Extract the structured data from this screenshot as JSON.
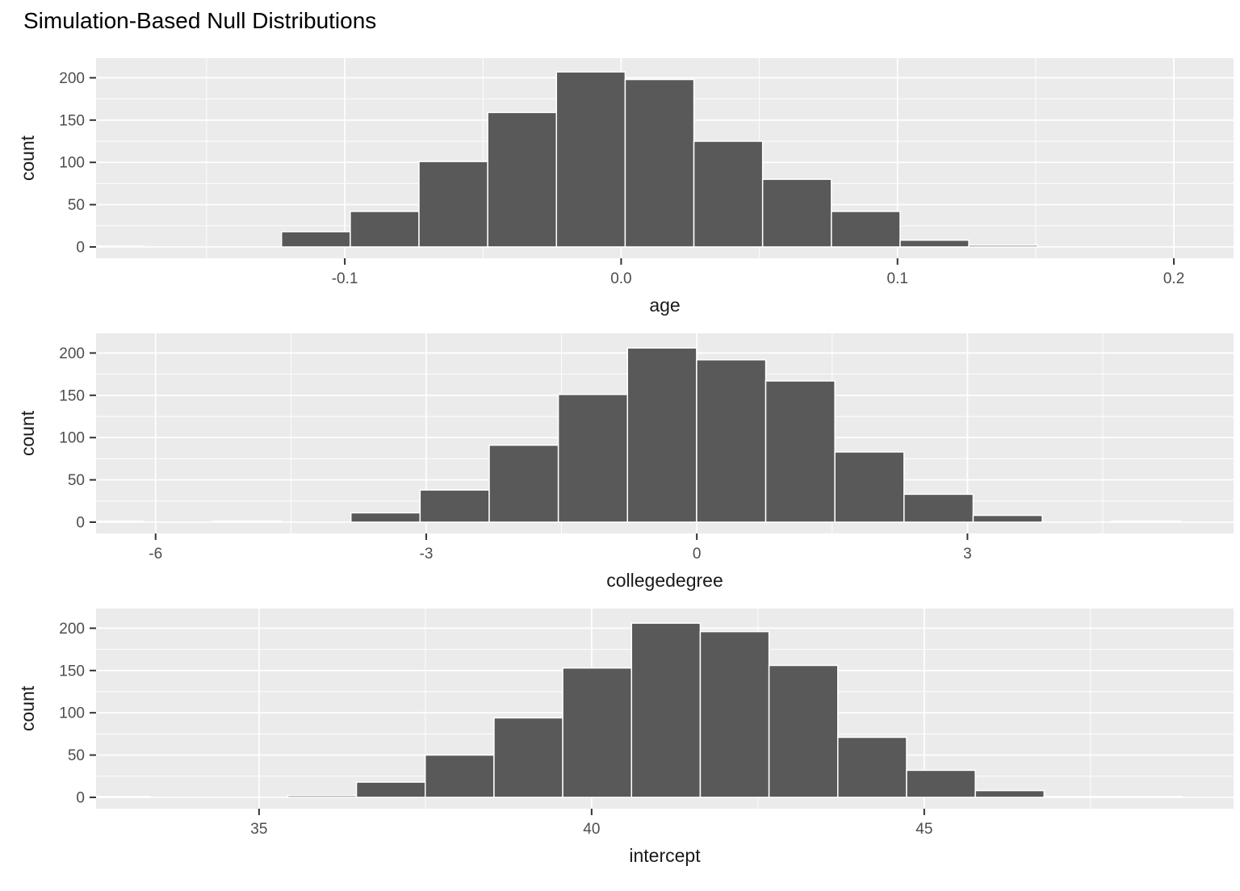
{
  "title": "Simulation-Based Null Distributions",
  "colors": {
    "bar_fill": "#595959",
    "bar_stroke": "#ffffff",
    "panel_bg": "#ebebeb",
    "grid_major": "#ffffff",
    "grid_minor": "#ffffff",
    "tick_mark": "#333333",
    "tick_label": "#4d4d4d",
    "axis_title": "#1a1a1a",
    "title": "#000000"
  },
  "chart_data": [
    {
      "type": "bar",
      "subtype": "histogram",
      "title": "",
      "xlabel": "age",
      "ylabel": "count",
      "legend": "none",
      "grid": true,
      "xlim": [
        -0.19,
        0.2216
      ],
      "ylim": [
        -13.4,
        223.3
      ],
      "x_ticks": [
        {
          "v": -0.1,
          "label": "-0.1"
        },
        {
          "v": 0.0,
          "label": "0.0"
        },
        {
          "v": 0.1,
          "label": "0.1"
        },
        {
          "v": 0.2,
          "label": "0.2"
        }
      ],
      "x_minor": [
        -0.15,
        -0.05,
        0.05,
        0.15
      ],
      "y_ticks": [
        {
          "v": 0,
          "label": "0"
        },
        {
          "v": 50,
          "label": "50"
        },
        {
          "v": 100,
          "label": "100"
        },
        {
          "v": 150,
          "label": "150"
        },
        {
          "v": 200,
          "label": "200"
        }
      ],
      "y_minor": [
        25,
        75,
        125,
        175
      ],
      "bin_start": -0.1975,
      "bin_width": 0.02487,
      "counts": [
        1,
        0,
        0,
        18,
        42,
        101,
        159,
        207,
        198,
        125,
        80,
        42,
        8,
        2
      ]
    },
    {
      "type": "bar",
      "subtype": "histogram",
      "title": "",
      "xlabel": "collegedegree",
      "ylabel": "count",
      "legend": "none",
      "grid": true,
      "xlim": [
        -6.66,
        5.95
      ],
      "ylim": [
        -13.4,
        223.3
      ],
      "x_ticks": [
        {
          "v": -6,
          "label": "-6"
        },
        {
          "v": -3,
          "label": "-3"
        },
        {
          "v": 0,
          "label": "0"
        },
        {
          "v": 3,
          "label": "3"
        }
      ],
      "x_minor": [
        -4.5,
        -1.5,
        1.5,
        4.5
      ],
      "y_ticks": [
        {
          "v": 0,
          "label": "0"
        },
        {
          "v": 50,
          "label": "50"
        },
        {
          "v": 100,
          "label": "100"
        },
        {
          "v": 150,
          "label": "150"
        },
        {
          "v": 200,
          "label": "200"
        }
      ],
      "y_minor": [
        25,
        75,
        125,
        175
      ],
      "bin_start": -6.9,
      "bin_width": 0.7664,
      "counts": [
        1,
        0,
        1,
        0,
        11,
        38,
        91,
        151,
        206,
        192,
        167,
        83,
        33,
        8,
        0,
        1
      ]
    },
    {
      "type": "bar",
      "subtype": "histogram",
      "title": "",
      "xlabel": "intercept",
      "ylabel": "count",
      "legend": "none",
      "grid": true,
      "xlim": [
        32.55,
        49.65
      ],
      "ylim": [
        -13.4,
        223.3
      ],
      "x_ticks": [
        {
          "v": 35,
          "label": "35"
        },
        {
          "v": 40,
          "label": "40"
        },
        {
          "v": 45,
          "label": "45"
        }
      ],
      "x_minor": [
        37.5,
        42.5,
        47.5
      ],
      "y_ticks": [
        {
          "v": 0,
          "label": "0"
        },
        {
          "v": 50,
          "label": "50"
        },
        {
          "v": 100,
          "label": "100"
        },
        {
          "v": 150,
          "label": "150"
        },
        {
          "v": 200,
          "label": "200"
        }
      ],
      "y_minor": [
        25,
        75,
        125,
        175
      ],
      "bin_start": 32.33,
      "bin_width": 1.0337,
      "counts": [
        1,
        0,
        0,
        2,
        18,
        50,
        94,
        153,
        206,
        196,
        156,
        71,
        32,
        8,
        1,
        1
      ]
    }
  ]
}
